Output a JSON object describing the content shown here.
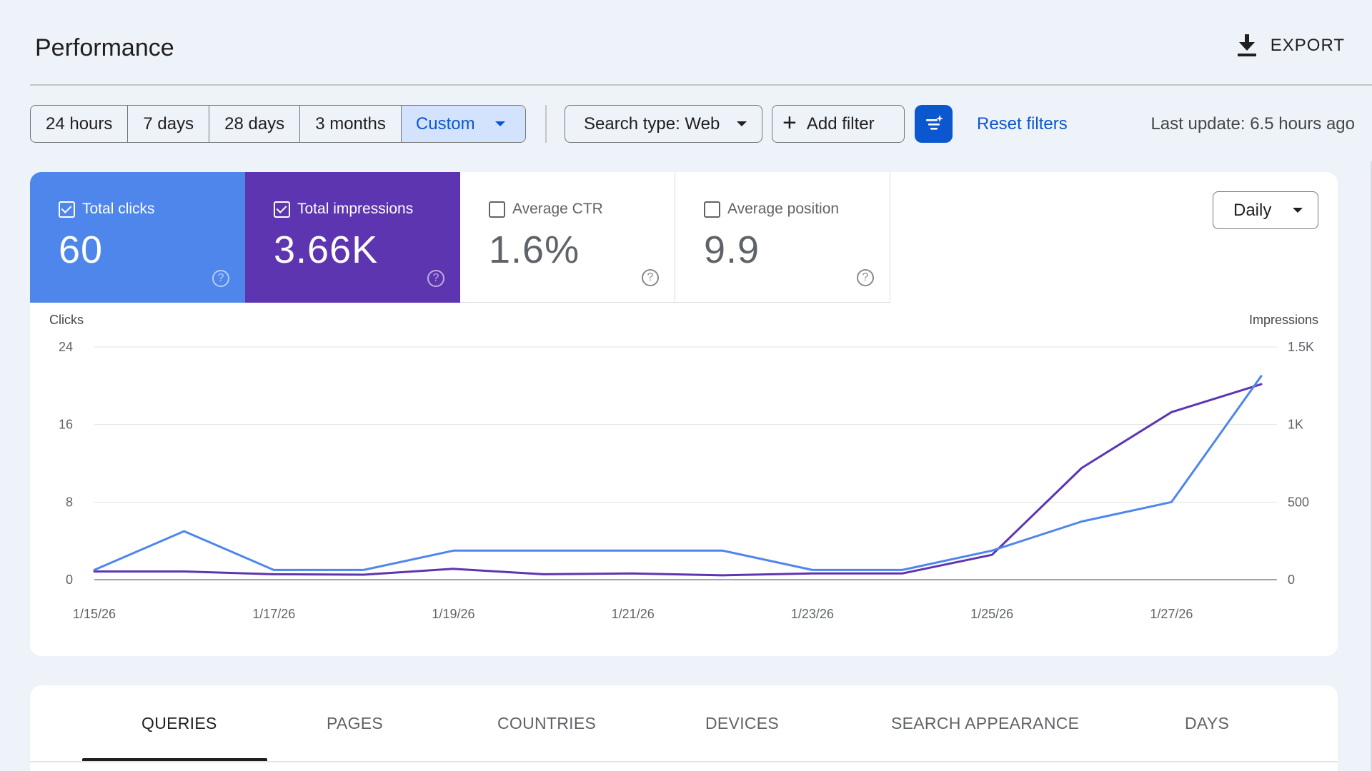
{
  "header": {
    "title": "Performance",
    "export_label": "EXPORT"
  },
  "filters": {
    "ranges": [
      "24 hours",
      "7 days",
      "28 days",
      "3 months",
      "Custom"
    ],
    "active_range": "Custom",
    "search_type": "Search type: Web",
    "add_filter": "Add filter",
    "reset": "Reset filters",
    "last_update": "Last update: 6.5 hours ago"
  },
  "metrics": [
    {
      "label": "Total clicks",
      "value": "60",
      "checked": true,
      "color": "#4f86ec"
    },
    {
      "label": "Total impressions",
      "value": "3.66K",
      "checked": true,
      "color": "#5e35b1"
    },
    {
      "label": "Average CTR",
      "value": "1.6%",
      "checked": false
    },
    {
      "label": "Average position",
      "value": "9.9",
      "checked": false
    }
  ],
  "granularity": "Daily",
  "chart_data": {
    "type": "line",
    "x": [
      "1/15/26",
      "1/16/26",
      "1/17/26",
      "1/18/26",
      "1/19/26",
      "1/20/26",
      "1/21/26",
      "1/22/26",
      "1/23/26",
      "1/24/26",
      "1/25/26",
      "1/26/26",
      "1/27/26",
      "1/28/26"
    ],
    "x_tick_labels": [
      "1/15/26",
      "1/17/26",
      "1/19/26",
      "1/21/26",
      "1/23/26",
      "1/25/26",
      "1/27/26"
    ],
    "series": [
      {
        "name": "Clicks",
        "axis": "left",
        "color": "#4f86ec",
        "values": [
          1,
          5,
          1,
          1,
          3,
          3,
          3,
          3,
          1,
          1,
          3,
          6,
          8,
          21
        ]
      },
      {
        "name": "Impressions",
        "axis": "right",
        "color": "#5e35b1",
        "values": [
          53,
          53,
          35,
          32,
          70,
          35,
          40,
          28,
          40,
          40,
          160,
          720,
          1080,
          1260
        ]
      }
    ],
    "y_left": {
      "label": "Clicks",
      "ticks": [
        "0",
        "8",
        "16",
        "24"
      ],
      "range": [
        0,
        24
      ]
    },
    "y_right": {
      "label": "Impressions",
      "ticks": [
        "0",
        "500",
        "1K",
        "1.5K"
      ],
      "range": [
        0,
        1500
      ]
    },
    "grid": true
  },
  "tabs": [
    "QUERIES",
    "PAGES",
    "COUNTRIES",
    "DEVICES",
    "SEARCH APPEARANCE",
    "DAYS"
  ],
  "active_tab": "QUERIES"
}
